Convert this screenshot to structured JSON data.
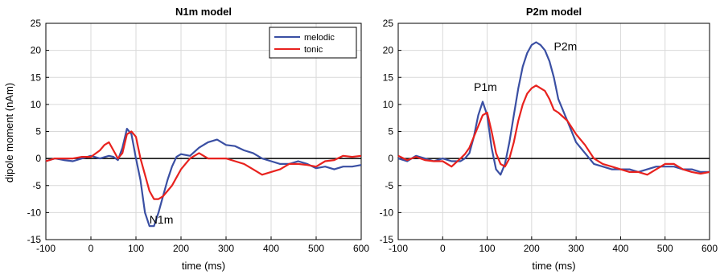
{
  "chart_data": [
    {
      "type": "line",
      "title": "N1m model",
      "xlabel": "time (ms)",
      "ylabel": "dipole moment (nAm)",
      "xlim": [
        -100,
        600
      ],
      "ylim": [
        -15,
        25
      ],
      "xticks": [
        -100,
        0,
        100,
        200,
        300,
        400,
        500,
        600
      ],
      "yticks": [
        -15,
        -10,
        -5,
        0,
        5,
        10,
        15,
        20,
        25
      ],
      "grid": true,
      "legend": "top-right",
      "annotations": [
        {
          "text": "N1m",
          "x": 130,
          "y": -12
        }
      ],
      "series": [
        {
          "name": "melodic",
          "color": "#3a4fa3",
          "x": [
            -100,
            -80,
            -60,
            -40,
            -20,
            0,
            20,
            40,
            50,
            60,
            70,
            80,
            90,
            100,
            110,
            120,
            130,
            140,
            150,
            160,
            170,
            180,
            190,
            200,
            220,
            240,
            260,
            280,
            300,
            320,
            340,
            360,
            380,
            400,
            420,
            440,
            460,
            480,
            500,
            520,
            540,
            560,
            580,
            600
          ],
          "y": [
            -0.5,
            0,
            -0.3,
            -0.5,
            0,
            0.5,
            0,
            0.5,
            0.3,
            -0.3,
            2,
            5.5,
            4.5,
            0,
            -4,
            -10,
            -12.5,
            -12.5,
            -10,
            -7,
            -4,
            -1.5,
            0.3,
            0.8,
            0.5,
            2,
            3,
            3.5,
            2.5,
            2.3,
            1.5,
            1,
            0,
            -0.5,
            -1,
            -1,
            -0.5,
            -1,
            -1.8,
            -1.5,
            -2,
            -1.5,
            -1.5,
            -1.2
          ]
        },
        {
          "name": "tonic",
          "color": "#e8221e",
          "x": [
            -100,
            -80,
            -60,
            -40,
            -20,
            0,
            20,
            30,
            40,
            50,
            60,
            70,
            80,
            90,
            100,
            110,
            120,
            130,
            140,
            150,
            160,
            170,
            180,
            190,
            200,
            220,
            240,
            260,
            280,
            300,
            320,
            340,
            360,
            380,
            400,
            420,
            440,
            460,
            480,
            500,
            520,
            540,
            560,
            580,
            600
          ],
          "y": [
            -0.5,
            0,
            0,
            0,
            0.3,
            0.3,
            1.5,
            2.5,
            3,
            1.5,
            0,
            1,
            4.5,
            5,
            4,
            0,
            -3,
            -6,
            -7.5,
            -7.5,
            -7,
            -6,
            -5,
            -3.5,
            -2,
            0,
            1,
            0,
            0,
            0,
            -0.5,
            -1,
            -2,
            -3,
            -2.5,
            -2,
            -1,
            -1,
            -1.2,
            -1.5,
            -0.5,
            -0.3,
            0.5,
            0.3,
            0.5
          ]
        }
      ]
    },
    {
      "type": "line",
      "title": "P2m model",
      "xlabel": "time (ms)",
      "ylabel": "",
      "xlim": [
        -100,
        600
      ],
      "ylim": [
        -15,
        25
      ],
      "xticks": [
        -100,
        0,
        100,
        200,
        300,
        400,
        500,
        600
      ],
      "yticks": [
        -15,
        -10,
        -5,
        0,
        5,
        10,
        15,
        20,
        25
      ],
      "grid": true,
      "annotations": [
        {
          "text": "P1m",
          "x": 70,
          "y": 12.5
        },
        {
          "text": "P2m",
          "x": 250,
          "y": 20
        }
      ],
      "series": [
        {
          "name": "melodic",
          "color": "#3a4fa3",
          "x": [
            -100,
            -80,
            -60,
            -40,
            -20,
            0,
            20,
            40,
            50,
            60,
            70,
            80,
            90,
            100,
            110,
            120,
            130,
            140,
            150,
            160,
            170,
            180,
            190,
            200,
            210,
            220,
            230,
            240,
            250,
            260,
            280,
            300,
            320,
            340,
            360,
            380,
            400,
            420,
            440,
            460,
            480,
            500,
            520,
            540,
            560,
            580,
            600
          ],
          "y": [
            0,
            -0.5,
            0.5,
            0,
            -0.5,
            0,
            -0.5,
            -0.5,
            0,
            1,
            4,
            8,
            10.5,
            8,
            2,
            -2,
            -3,
            -1,
            3,
            8,
            13,
            17,
            19.5,
            21,
            21.5,
            21,
            20,
            18,
            15,
            11,
            7,
            3,
            1,
            -1,
            -1.5,
            -2,
            -2,
            -2,
            -2.5,
            -2,
            -1.5,
            -1.5,
            -1.5,
            -2,
            -2,
            -2.5,
            -2.5
          ]
        },
        {
          "name": "tonic",
          "color": "#e8221e",
          "x": [
            -100,
            -80,
            -60,
            -40,
            -20,
            0,
            20,
            40,
            50,
            60,
            70,
            80,
            90,
            100,
            110,
            120,
            130,
            140,
            150,
            160,
            170,
            180,
            190,
            200,
            210,
            220,
            230,
            240,
            250,
            260,
            280,
            300,
            320,
            340,
            360,
            380,
            400,
            420,
            440,
            460,
            480,
            500,
            520,
            540,
            560,
            580,
            600
          ],
          "y": [
            0.5,
            -0.3,
            0.3,
            -0.3,
            -0.5,
            -0.5,
            -1.5,
            0,
            0.8,
            2,
            4,
            6,
            8,
            8.5,
            5,
            1,
            -1,
            -1.5,
            0,
            3,
            7,
            10,
            12,
            13,
            13.5,
            13,
            12.5,
            11,
            9,
            8.5,
            7,
            4.5,
            2.5,
            0,
            -1,
            -1.5,
            -2,
            -2.5,
            -2.5,
            -3,
            -2,
            -1,
            -1,
            -2,
            -2.5,
            -2.8,
            -2.5
          ]
        }
      ]
    }
  ]
}
